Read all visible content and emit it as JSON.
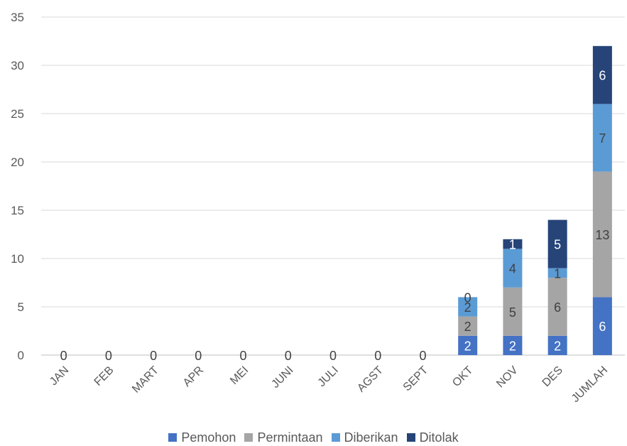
{
  "chart_data": {
    "type": "bar",
    "stacked": true,
    "title": "",
    "xlabel": "",
    "ylabel": "",
    "ylim": [
      0,
      35
    ],
    "yticks": [
      "0",
      "5",
      "10",
      "15",
      "20",
      "25",
      "30",
      "35"
    ],
    "grid": true,
    "legend_position": "bottom",
    "categories": [
      "JAN",
      "FEB",
      "MART",
      "APR",
      "MEI",
      "JUNI",
      "JULI",
      "AGST",
      "SEPT",
      "OKT",
      "NOV",
      "DES",
      "JUMLAH"
    ],
    "series": [
      {
        "name": "Pemohon",
        "color": "#4472C4",
        "label_color": "#ffffff",
        "values": [
          0,
          0,
          0,
          0,
          0,
          0,
          0,
          0,
          0,
          2,
          2,
          2,
          6
        ]
      },
      {
        "name": "Permintaan",
        "color": "#A5A5A5",
        "label_color": "#404040",
        "values": [
          0,
          0,
          0,
          0,
          0,
          0,
          0,
          0,
          0,
          2,
          5,
          6,
          13
        ]
      },
      {
        "name": "Diberikan",
        "color": "#5B9BD5",
        "label_color": "#404040",
        "values": [
          0,
          0,
          0,
          0,
          0,
          0,
          0,
          0,
          0,
          2,
          4,
          1,
          7
        ]
      },
      {
        "name": "Ditolak",
        "color": "#264478",
        "label_color": "#ffffff",
        "values": [
          0,
          0,
          0,
          0,
          0,
          0,
          0,
          0,
          0,
          0,
          1,
          5,
          6
        ]
      }
    ]
  }
}
